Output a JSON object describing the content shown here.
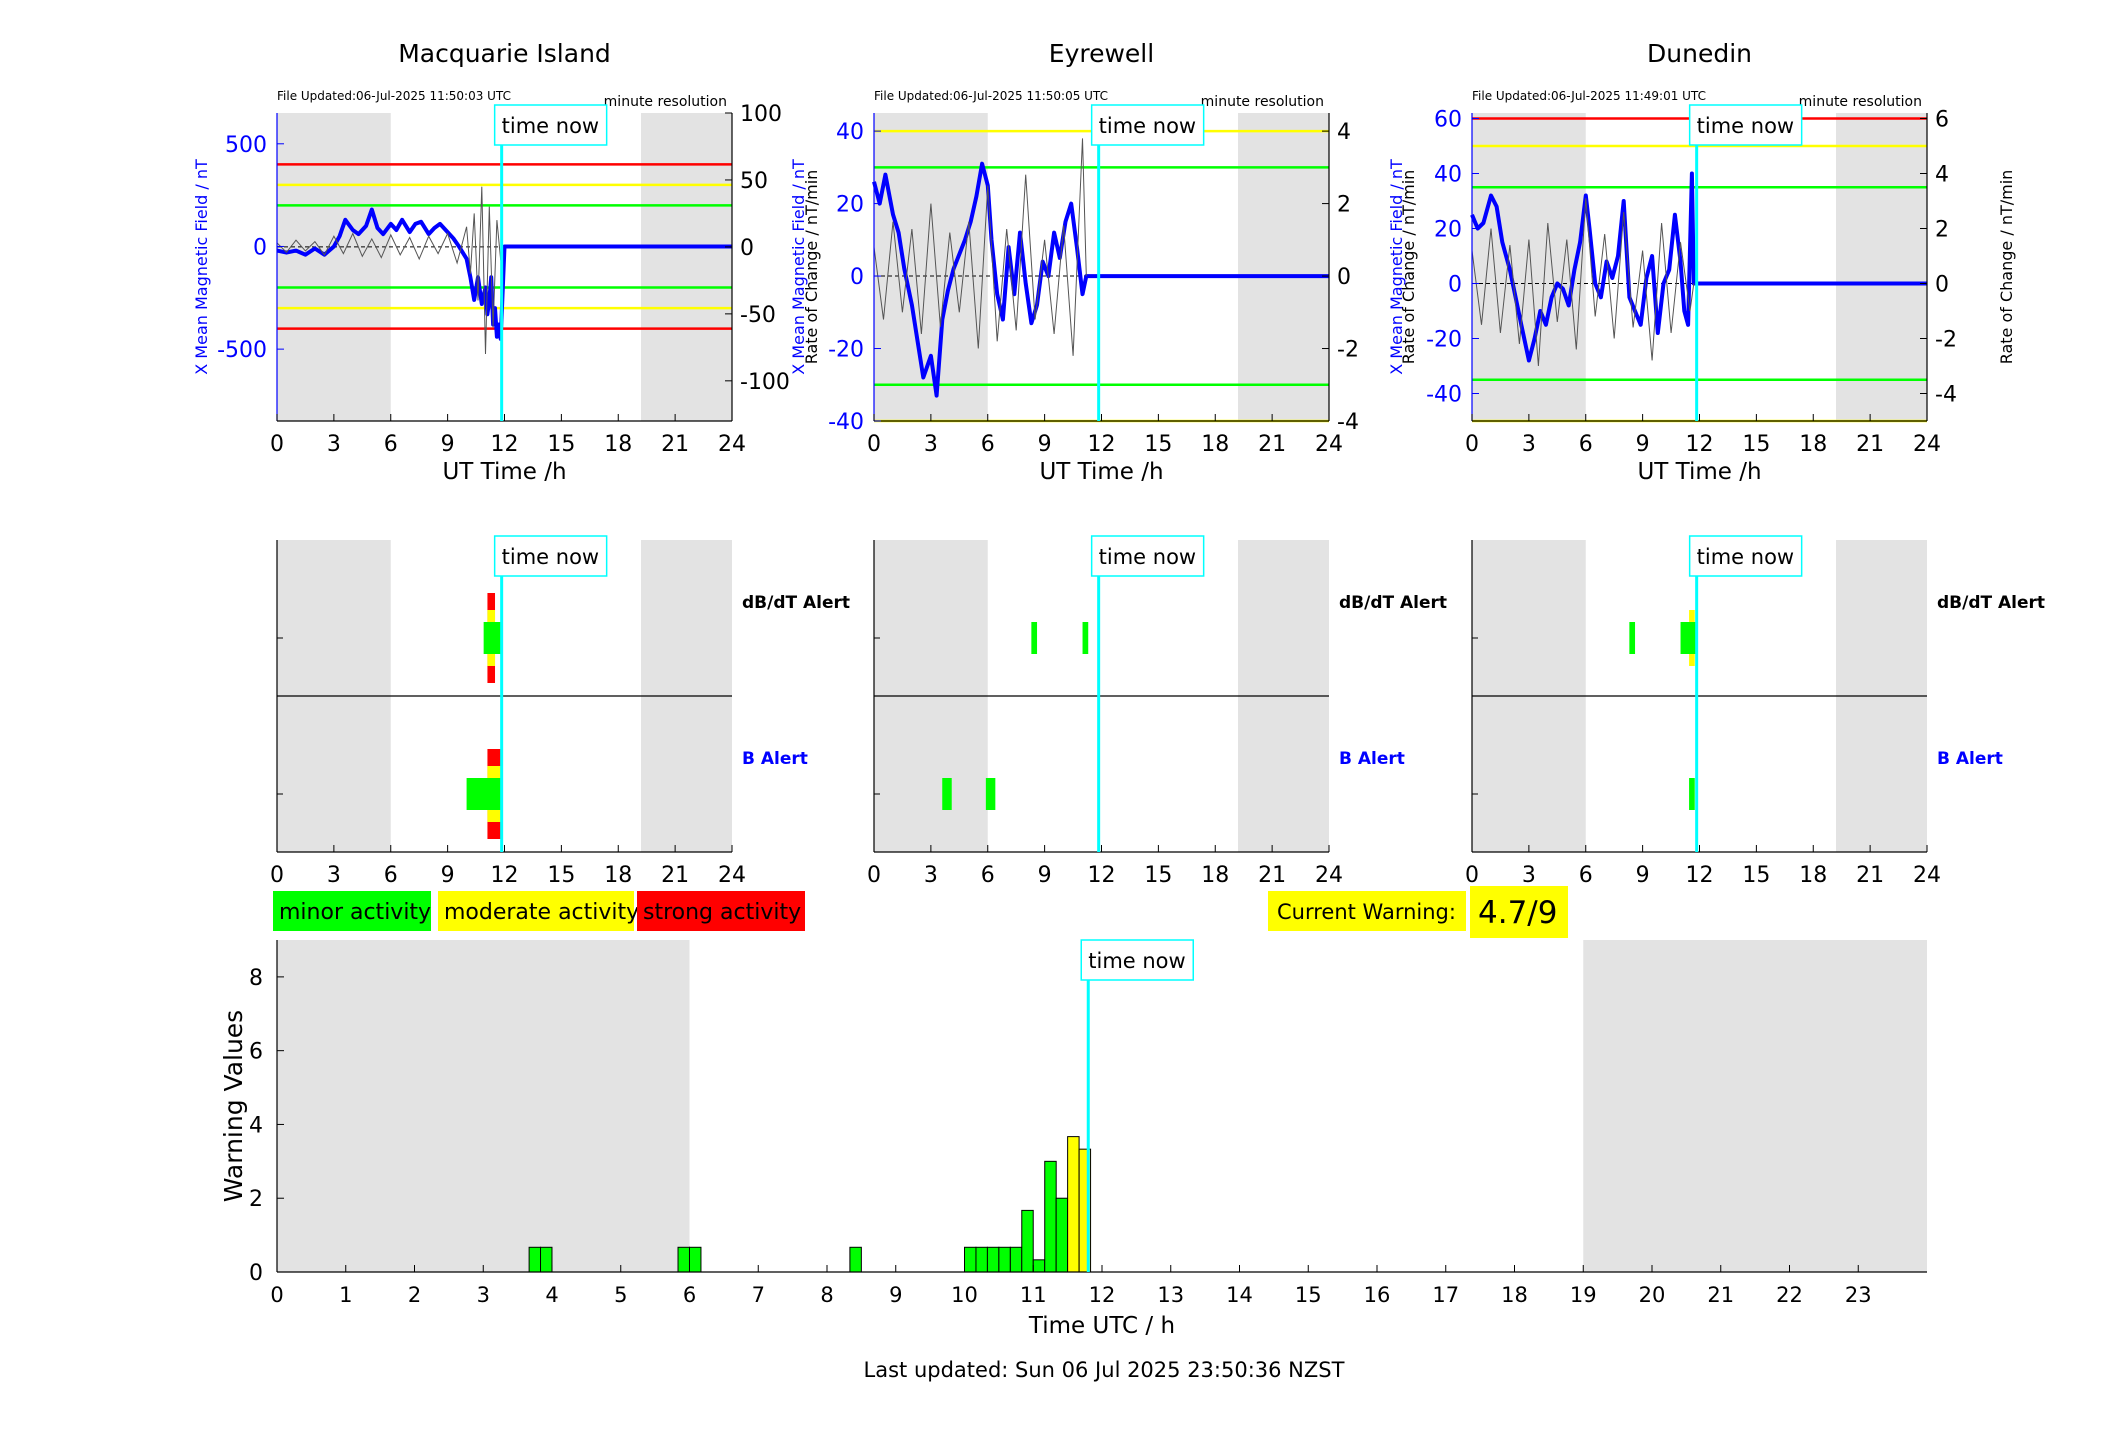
{
  "colors": {
    "shade": "#e3e3e3",
    "blue": "#0000ff",
    "darkblue": "#1020c0",
    "green": "#00ff00",
    "yellow": "#ffff00",
    "red": "#ff0000",
    "cyan": "#00ffff",
    "gray": "#555555"
  },
  "legend": {
    "minor": "minor activity",
    "moderate": "moderate activity",
    "strong": "strong activity"
  },
  "current_warning": {
    "label": "Current Warning:",
    "value": "4.7/9"
  },
  "footer": "Last updated: Sun 06 Jul 2025 23:50:36 NZST",
  "time_now_label": "time now",
  "chart_data": [
    {
      "type": "line",
      "title": "Macquarie Island",
      "file_updated": "File Updated:06-Jul-2025 11:50:03 UTC",
      "resolution": "minute resolution",
      "xlabel": "UT Time /h",
      "ylabel_left": "X Mean Magnetic Field / nT",
      "ylabel_right": "Rate of Change / nT/min",
      "xlim": [
        0,
        24
      ],
      "xticks": [
        0,
        3,
        6,
        9,
        12,
        15,
        18,
        21,
        24
      ],
      "ylim": [
        -850,
        650
      ],
      "yticks": [
        -500,
        0,
        500
      ],
      "ylim_right": [
        -130,
        100
      ],
      "yticks_right": [
        -100,
        -50,
        0,
        50,
        100
      ],
      "thresholds": {
        "red": 400,
        "yellow": 300,
        "green": 200
      },
      "shaded_hours": [
        [
          0,
          6
        ],
        [
          19.2,
          24
        ]
      ],
      "time_now": 11.85,
      "series": [
        {
          "style": "mean-field",
          "x": [
            0,
            0.5,
            1,
            1.5,
            2,
            2.5,
            3,
            3.3,
            3.6,
            4,
            4.3,
            4.7,
            5,
            5.3,
            5.6,
            6,
            6.3,
            6.6,
            7,
            7.3,
            7.6,
            8,
            8.3,
            8.6,
            9,
            9.3,
            9.6,
            10,
            10.2,
            10.4,
            10.6,
            10.8,
            11,
            11.1,
            11.2,
            11.3,
            11.4,
            11.5,
            11.6,
            11.7,
            11.8,
            12,
            24
          ],
          "y": [
            -20,
            -30,
            -20,
            -40,
            -10,
            -40,
            0,
            50,
            130,
            80,
            60,
            100,
            180,
            90,
            60,
            110,
            80,
            130,
            70,
            110,
            120,
            60,
            90,
            110,
            70,
            40,
            0,
            -60,
            -150,
            -260,
            -150,
            -280,
            -200,
            -330,
            -260,
            -150,
            -380,
            -300,
            -440,
            -380,
            -450,
            0,
            0
          ]
        },
        {
          "style": "rate-of-change",
          "x": [
            0,
            0.5,
            1,
            1.5,
            2,
            2.5,
            3,
            3.5,
            4,
            4.5,
            5,
            5.5,
            6,
            6.5,
            7,
            7.5,
            8,
            8.5,
            9,
            9.5,
            10,
            10.2,
            10.4,
            10.6,
            10.8,
            11,
            11.2,
            11.4,
            11.6,
            11.8
          ],
          "y": [
            3,
            -4,
            5,
            -3,
            4,
            -6,
            8,
            -5,
            10,
            -7,
            6,
            -8,
            9,
            -6,
            7,
            -9,
            8,
            -5,
            10,
            -12,
            15,
            -20,
            25,
            -40,
            45,
            -80,
            30,
            -60,
            20,
            -10
          ]
        }
      ]
    },
    {
      "type": "line",
      "title": "Eyrewell",
      "file_updated": "File Updated:06-Jul-2025 11:50:05 UTC",
      "resolution": "minute resolution",
      "xlabel": "UT Time /h",
      "ylabel_left": "X Mean Magnetic Field / nT",
      "ylabel_right": "Rate of Change / nT/min",
      "xlim": [
        0,
        24
      ],
      "xticks": [
        0,
        3,
        6,
        9,
        12,
        15,
        18,
        21,
        24
      ],
      "ylim": [
        -40,
        45
      ],
      "yticks": [
        -40,
        -20,
        0,
        20,
        40
      ],
      "ylim_right": [
        -4,
        4.5
      ],
      "yticks_right": [
        -4,
        -2,
        0,
        2,
        4
      ],
      "thresholds": {
        "yellow": 40,
        "green": 30
      },
      "shaded_hours": [
        [
          0,
          6
        ],
        [
          19.2,
          24
        ]
      ],
      "time_now": 11.85,
      "series": [
        {
          "style": "mean-field",
          "x": [
            0,
            0.3,
            0.6,
            1,
            1.3,
            1.6,
            2,
            2.3,
            2.6,
            3,
            3.3,
            3.6,
            3.9,
            4.2,
            4.5,
            4.8,
            5.1,
            5.4,
            5.7,
            6,
            6.2,
            6.5,
            6.8,
            7.1,
            7.4,
            7.7,
            8,
            8.3,
            8.6,
            8.9,
            9.2,
            9.5,
            9.8,
            10.1,
            10.4,
            10.7,
            11,
            11.2,
            11.4,
            12,
            24
          ],
          "y": [
            26,
            20,
            28,
            17,
            12,
            2,
            -8,
            -18,
            -28,
            -22,
            -33,
            -12,
            -4,
            2,
            6,
            10,
            15,
            22,
            31,
            25,
            10,
            -5,
            -12,
            8,
            -5,
            12,
            -2,
            -13,
            -8,
            4,
            0,
            12,
            5,
            15,
            20,
            8,
            -5,
            0,
            0,
            0,
            0
          ]
        },
        {
          "style": "rate-of-change",
          "x": [
            0,
            0.5,
            1,
            1.5,
            2,
            2.5,
            3,
            3.5,
            4,
            4.5,
            5,
            5.5,
            6,
            6.5,
            7,
            7.5,
            8,
            8.5,
            9,
            9.5,
            10,
            10.5,
            11,
            11.2
          ],
          "y": [
            0.8,
            -1.2,
            1.5,
            -1,
            1.3,
            -1.6,
            2,
            -1.4,
            1.2,
            -1,
            1.5,
            -2,
            2.5,
            -1.8,
            1.3,
            -1.5,
            2.8,
            -1.2,
            1,
            -1.6,
            1.4,
            -2.2,
            3.8,
            0
          ]
        }
      ]
    },
    {
      "type": "line",
      "title": "Dunedin",
      "file_updated": "File Updated:06-Jul-2025 11:49:01 UTC",
      "resolution": "minute resolution",
      "xlabel": "UT Time /h",
      "ylabel_left": "X Mean Magnetic Field / nT",
      "ylabel_right": "Rate of Change / nT/min",
      "xlim": [
        0,
        24
      ],
      "xticks": [
        0,
        3,
        6,
        9,
        12,
        15,
        18,
        21,
        24
      ],
      "ylim": [
        -50,
        62
      ],
      "yticks": [
        -40,
        -20,
        0,
        20,
        40,
        60
      ],
      "ylim_right": [
        -5,
        6.2
      ],
      "yticks_right": [
        -4,
        -2,
        0,
        2,
        4,
        6
      ],
      "thresholds": {
        "red": 60,
        "yellow": 50,
        "green": 35
      },
      "shaded_hours": [
        [
          0,
          6
        ],
        [
          19.2,
          24
        ]
      ],
      "time_now": 11.85,
      "series": [
        {
          "style": "mean-field",
          "x": [
            0,
            0.3,
            0.6,
            1,
            1.3,
            1.6,
            2,
            2.3,
            2.6,
            3,
            3.3,
            3.6,
            3.9,
            4.2,
            4.5,
            4.8,
            5.1,
            5.4,
            5.7,
            6,
            6.2,
            6.5,
            6.8,
            7.1,
            7.4,
            7.7,
            8,
            8.3,
            8.6,
            8.9,
            9.2,
            9.5,
            9.8,
            10.1,
            10.4,
            10.7,
            11,
            11.2,
            11.4,
            11.6,
            11.7,
            12,
            24
          ],
          "y": [
            25,
            20,
            22,
            32,
            28,
            15,
            5,
            -5,
            -15,
            -28,
            -20,
            -10,
            -15,
            -5,
            0,
            -2,
            -8,
            5,
            15,
            32,
            20,
            0,
            -5,
            8,
            2,
            10,
            30,
            -5,
            -10,
            -15,
            2,
            10,
            -18,
            0,
            5,
            25,
            8,
            -10,
            -15,
            40,
            0,
            0,
            0
          ]
        },
        {
          "style": "rate-of-change",
          "x": [
            0,
            0.5,
            1,
            1.5,
            2,
            2.5,
            3,
            3.5,
            4,
            4.5,
            5,
            5.5,
            6,
            6.5,
            7,
            7.5,
            8,
            8.5,
            9,
            9.5,
            10,
            10.5,
            11,
            11.5,
            11.7
          ],
          "y": [
            1.2,
            -1.5,
            2,
            -1.8,
            1.4,
            -2.2,
            1.6,
            -3,
            2.2,
            -1.4,
            1.6,
            -2.4,
            3.1,
            -1.2,
            1.8,
            -2,
            2.6,
            -1.6,
            1.2,
            -2.8,
            2.2,
            -1.8,
            1.5,
            -1,
            0
          ]
        }
      ]
    },
    {
      "type": "bar",
      "title": "",
      "station": "Macquarie Island",
      "rows": [
        "dB/dT Alert",
        "B Alert"
      ],
      "xlim": [
        0,
        24
      ],
      "xticks": [
        0,
        3,
        6,
        9,
        12,
        15,
        18,
        21,
        24
      ],
      "shaded_hours": [
        [
          0,
          6
        ],
        [
          19.2,
          24
        ]
      ],
      "time_now": 11.85,
      "bars": [
        {
          "row": 0,
          "x0": 10.9,
          "x1": 11.9,
          "level": "minor"
        },
        {
          "row": 0,
          "x0": 11.1,
          "x1": 11.5,
          "level": "moderate"
        },
        {
          "row": 0,
          "x0": 11.1,
          "x1": 11.5,
          "level": "strong"
        },
        {
          "row": 1,
          "x0": 10.0,
          "x1": 11.9,
          "level": "minor"
        },
        {
          "row": 1,
          "x0": 11.1,
          "x1": 11.9,
          "level": "moderate"
        },
        {
          "row": 1,
          "x0": 11.1,
          "x1": 11.9,
          "level": "strong"
        }
      ]
    },
    {
      "type": "bar",
      "title": "",
      "station": "Eyrewell",
      "rows": [
        "dB/dT Alert",
        "B Alert"
      ],
      "xlim": [
        0,
        24
      ],
      "xticks": [
        0,
        3,
        6,
        9,
        12,
        15,
        18,
        21,
        24
      ],
      "shaded_hours": [
        [
          0,
          6
        ],
        [
          19.2,
          24
        ]
      ],
      "time_now": 11.85,
      "bars": [
        {
          "row": 0,
          "x0": 8.3,
          "x1": 8.6,
          "level": "minor"
        },
        {
          "row": 0,
          "x0": 11.0,
          "x1": 11.3,
          "level": "minor"
        },
        {
          "row": 1,
          "x0": 3.6,
          "x1": 4.1,
          "level": "minor"
        },
        {
          "row": 1,
          "x0": 5.9,
          "x1": 6.4,
          "level": "minor"
        }
      ]
    },
    {
      "type": "bar",
      "title": "",
      "station": "Dunedin",
      "rows": [
        "dB/dT Alert",
        "B Alert"
      ],
      "xlim": [
        0,
        24
      ],
      "xticks": [
        0,
        3,
        6,
        9,
        12,
        15,
        18,
        21,
        24
      ],
      "shaded_hours": [
        [
          0,
          6
        ],
        [
          19.2,
          24
        ]
      ],
      "time_now": 11.85,
      "bars": [
        {
          "row": 0,
          "x0": 8.3,
          "x1": 8.6,
          "level": "minor"
        },
        {
          "row": 0,
          "x0": 11.0,
          "x1": 11.9,
          "level": "minor"
        },
        {
          "row": 0,
          "x0": 11.45,
          "x1": 11.75,
          "level": "moderate"
        },
        {
          "row": 1,
          "x0": 11.45,
          "x1": 11.75,
          "level": "minor"
        }
      ]
    },
    {
      "type": "bar",
      "title": "",
      "xlabel": "Time UTC / h",
      "ylabel": "Warning Values",
      "xlim": [
        0,
        24
      ],
      "xticks": [
        0,
        1,
        2,
        3,
        4,
        5,
        6,
        7,
        8,
        9,
        10,
        11,
        12,
        13,
        14,
        15,
        16,
        17,
        18,
        19,
        20,
        21,
        22,
        23
      ],
      "ylim": [
        0,
        9
      ],
      "yticks": [
        0,
        2,
        4,
        6,
        8
      ],
      "shaded_hours": [
        [
          0,
          6
        ],
        [
          19,
          24
        ]
      ],
      "time_now": 11.8,
      "bar_width": 0.1667,
      "bars": [
        {
          "x": 3.667,
          "value": 0.67,
          "level": "minor"
        },
        {
          "x": 3.833,
          "value": 0.67,
          "level": "minor"
        },
        {
          "x": 5.833,
          "value": 0.67,
          "level": "minor"
        },
        {
          "x": 6.0,
          "value": 0.67,
          "level": "minor"
        },
        {
          "x": 8.333,
          "value": 0.67,
          "level": "minor"
        },
        {
          "x": 10.0,
          "value": 0.67,
          "level": "minor"
        },
        {
          "x": 10.167,
          "value": 0.67,
          "level": "minor"
        },
        {
          "x": 10.333,
          "value": 0.67,
          "level": "minor"
        },
        {
          "x": 10.5,
          "value": 0.67,
          "level": "minor"
        },
        {
          "x": 10.667,
          "value": 0.67,
          "level": "minor"
        },
        {
          "x": 10.833,
          "value": 1.67,
          "level": "minor"
        },
        {
          "x": 11.0,
          "value": 0.33,
          "level": "minor"
        },
        {
          "x": 11.167,
          "value": 3.0,
          "level": "minor"
        },
        {
          "x": 11.333,
          "value": 2.0,
          "level": "minor"
        },
        {
          "x": 11.5,
          "value": 3.67,
          "level": "moderate"
        },
        {
          "x": 11.667,
          "value": 3.33,
          "level": "moderate"
        }
      ]
    }
  ]
}
